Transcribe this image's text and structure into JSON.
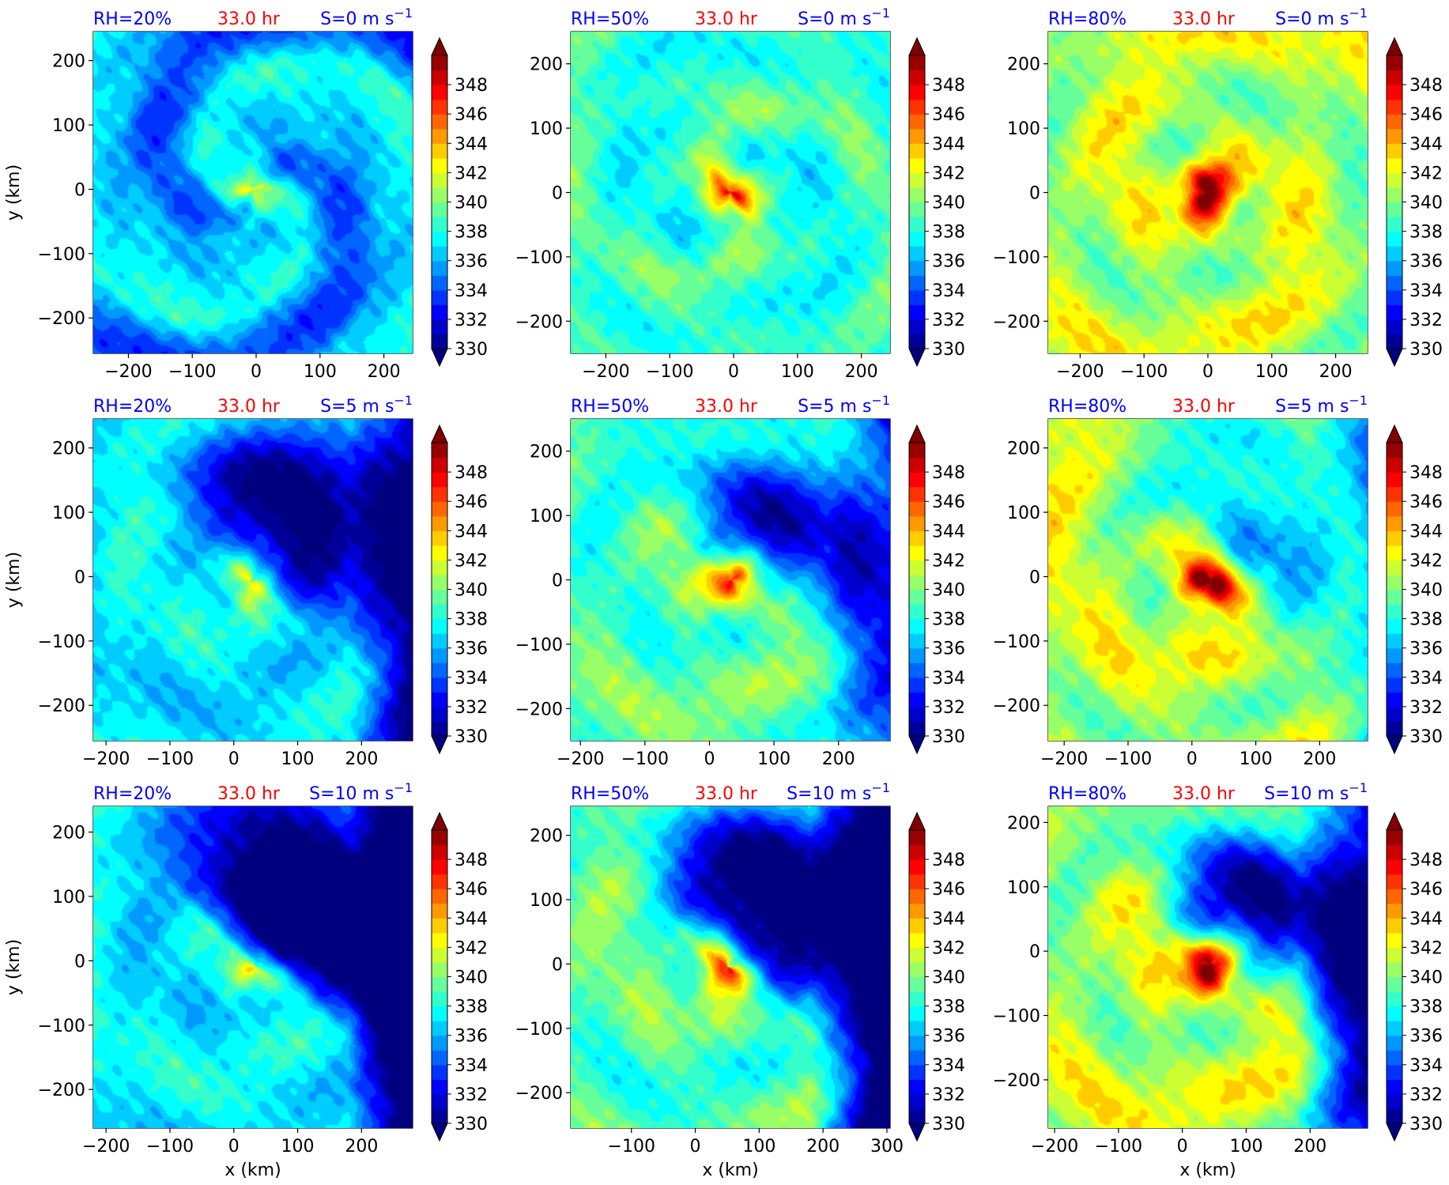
{
  "figure": {
    "variable_colorbar_ticks": [
      330,
      332,
      334,
      336,
      338,
      340,
      342,
      344,
      346,
      348
    ],
    "colormap": "jet",
    "colorbar_extend": "both",
    "center_marker_color": "#f4b6b6",
    "title_colors": {
      "rh": "#0000ff",
      "time": "#ff0000",
      "shear": "#0000ff"
    }
  },
  "chart_data": [
    {
      "type": "heatmap",
      "row": 0,
      "col": 0,
      "rh_label": "RH=20%",
      "time_label": "33.0 hr",
      "shear_label": "S=0 m s",
      "shear_exp": "−1",
      "xlim": [
        -255,
        245
      ],
      "ylim": [
        -255,
        245
      ],
      "xticks": [
        -200,
        -100,
        0,
        100,
        200
      ],
      "yticks": [
        -200,
        -100,
        0,
        100,
        200
      ],
      "xlabel": "",
      "ylabel": "y (km)",
      "center": [
        -5,
        0
      ],
      "moisture": 0.2,
      "shear": 0,
      "seed": 11
    },
    {
      "type": "heatmap",
      "row": 0,
      "col": 1,
      "rh_label": "RH=50%",
      "time_label": "33.0 hr",
      "shear_label": "S=0 m s",
      "shear_exp": "−1",
      "xlim": [
        -255,
        245
      ],
      "ylim": [
        -250,
        250
      ],
      "xticks": [
        -200,
        -100,
        0,
        100,
        200
      ],
      "yticks": [
        -200,
        -100,
        0,
        100,
        200
      ],
      "xlabel": "",
      "ylabel": "",
      "center": [
        -5,
        0
      ],
      "moisture": 0.5,
      "shear": 0,
      "seed": 23
    },
    {
      "type": "heatmap",
      "row": 0,
      "col": 2,
      "rh_label": "RH=80%",
      "time_label": "33.0 hr",
      "shear_label": "S=0 m s",
      "shear_exp": "−1",
      "xlim": [
        -250,
        250
      ],
      "ylim": [
        -250,
        250
      ],
      "xticks": [
        -200,
        -100,
        0,
        100,
        200
      ],
      "yticks": [
        -200,
        -100,
        0,
        100,
        200
      ],
      "xlabel": "",
      "ylabel": "",
      "center": [
        0,
        0
      ],
      "moisture": 0.8,
      "shear": 0,
      "seed": 37
    },
    {
      "type": "heatmap",
      "row": 1,
      "col": 0,
      "rh_label": "RH=20%",
      "time_label": "33.0 hr",
      "shear_label": "S=5 m s",
      "shear_exp": "−1",
      "xlim": [
        -220,
        280
      ],
      "ylim": [
        -255,
        245
      ],
      "xticks": [
        -200,
        -100,
        0,
        100,
        200
      ],
      "yticks": [
        -200,
        -100,
        0,
        100,
        200
      ],
      "xlabel": "",
      "ylabel": "y (km)",
      "center": [
        28,
        -8
      ],
      "moisture": 0.2,
      "shear": 5,
      "seed": 41
    },
    {
      "type": "heatmap",
      "row": 1,
      "col": 1,
      "rh_label": "RH=50%",
      "time_label": "33.0 hr",
      "shear_label": "S=5 m s",
      "shear_exp": "−1",
      "xlim": [
        -215,
        280
      ],
      "ylim": [
        -250,
        250
      ],
      "xticks": [
        -200,
        -100,
        0,
        100,
        200
      ],
      "yticks": [
        -200,
        -100,
        0,
        100,
        200
      ],
      "xlabel": "",
      "ylabel": "",
      "center": [
        35,
        0
      ],
      "moisture": 0.5,
      "shear": 5,
      "seed": 53
    },
    {
      "type": "heatmap",
      "row": 1,
      "col": 2,
      "rh_label": "RH=80%",
      "time_label": "33.0 hr",
      "shear_label": "S=5 m s",
      "shear_exp": "−1",
      "xlim": [
        -225,
        275
      ],
      "ylim": [
        -255,
        245
      ],
      "xticks": [
        -200,
        -100,
        0,
        100,
        200
      ],
      "yticks": [
        -200,
        -100,
        0,
        100,
        200
      ],
      "xlabel": "",
      "ylabel": "",
      "center": [
        30,
        -5
      ],
      "moisture": 0.8,
      "shear": 5,
      "seed": 67
    },
    {
      "type": "heatmap",
      "row": 2,
      "col": 0,
      "rh_label": "RH=20%",
      "time_label": "33.0 hr",
      "shear_label": "S=10 m s",
      "shear_exp": "−1",
      "xlim": [
        -220,
        280
      ],
      "ylim": [
        -260,
        240
      ],
      "xticks": [
        -200,
        -100,
        0,
        100,
        200
      ],
      "yticks": [
        -200,
        -100,
        0,
        100,
        200
      ],
      "xlabel": "x (km)",
      "ylabel": "y (km)",
      "center": [
        35,
        -10
      ],
      "moisture": 0.2,
      "shear": 10,
      "seed": 71
    },
    {
      "type": "heatmap",
      "row": 2,
      "col": 1,
      "rh_label": "RH=50%",
      "time_label": "33.0 hr",
      "shear_label": "S=10 m s",
      "shear_exp": "−1",
      "xlim": [
        -195,
        305
      ],
      "ylim": [
        -255,
        245
      ],
      "xticks": [
        -100,
        0,
        100,
        200,
        300
      ],
      "yticks": [
        -200,
        -100,
        0,
        100,
        200
      ],
      "xlabel": "x (km)",
      "ylabel": "",
      "center": [
        50,
        -5
      ],
      "moisture": 0.5,
      "shear": 10,
      "seed": 83
    },
    {
      "type": "heatmap",
      "row": 2,
      "col": 2,
      "rh_label": "RH=80%",
      "time_label": "33.0 hr",
      "shear_label": "S=10 m s",
      "shear_exp": "−1",
      "xlim": [
        -210,
        290
      ],
      "ylim": [
        -275,
        225
      ],
      "xticks": [
        -200,
        -100,
        0,
        100,
        200
      ],
      "yticks": [
        -200,
        -100,
        0,
        100,
        200
      ],
      "xlabel": "x (km)",
      "ylabel": "",
      "center": [
        45,
        -20
      ],
      "moisture": 0.8,
      "shear": 10,
      "seed": 97
    }
  ]
}
